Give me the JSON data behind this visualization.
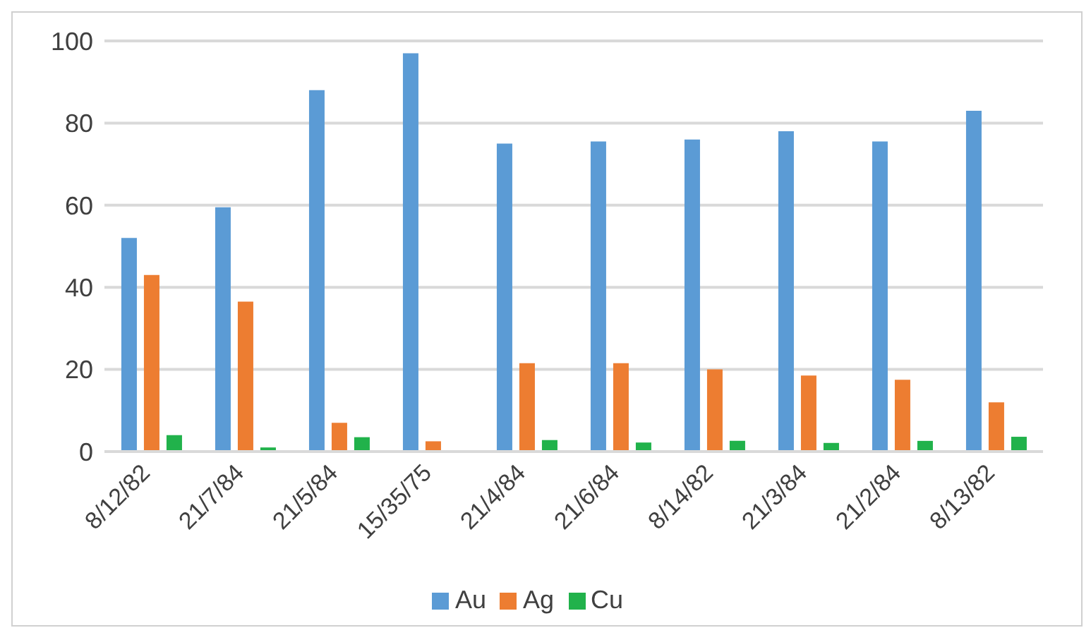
{
  "chart_data": {
    "type": "bar",
    "categories": [
      "8/12/82",
      "21/7/84",
      "21/5/84",
      "15/35/75",
      "21/4/84",
      "21/6/84",
      "8/14/82",
      "21/3/84",
      "21/2/84",
      "8/13/82"
    ],
    "series": [
      {
        "name": "Au",
        "color": "#5b9bd5",
        "values": [
          52,
          59.5,
          88,
          97,
          75,
          75.5,
          76,
          78,
          75.5,
          83
        ]
      },
      {
        "name": "Ag",
        "color": "#ed7d31",
        "values": [
          43,
          36.5,
          7,
          2.5,
          21.5,
          21.5,
          20,
          18.5,
          17.5,
          12
        ]
      },
      {
        "name": "Cu",
        "color": "#21b24b",
        "values": [
          4,
          1,
          3.5,
          0,
          2.8,
          2.2,
          2.6,
          2.1,
          2.6,
          3.6
        ]
      }
    ],
    "ylim": [
      0,
      100
    ],
    "yticks": [
      0,
      20,
      40,
      60,
      80,
      100
    ],
    "grid": "y",
    "legend": "bottom"
  }
}
